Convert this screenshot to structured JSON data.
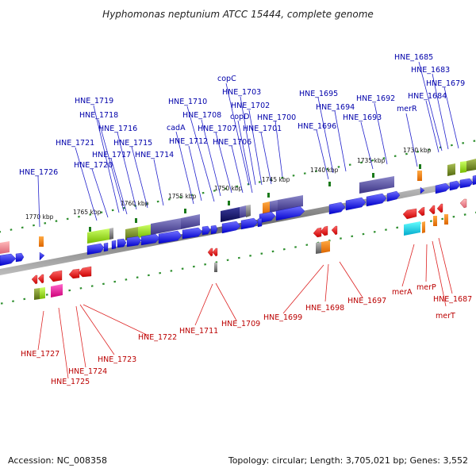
{
  "title": "Hyphomonas neptunium ATCC 15444, complete genome",
  "footer": {
    "accession": "Accession: NC_008358",
    "summary": "Topology: circular; Length: 3,705,021 bp; Genes: 3,552"
  },
  "scale_labels": [
    "1730 kbp",
    "1735 kbp",
    "1740 kbp",
    "1745 kbp",
    "1750 kbp",
    "1755 kbp",
    "1760 kbp",
    "1765 kbp",
    "1770 kbp"
  ],
  "forward_gene_labels": [
    "HNE_1685",
    "HNE_1683",
    "HNE_1679",
    "HNE_1684",
    "merR",
    "HNE_1692",
    "HNE_1695",
    "HNE_1694",
    "HNE_1693",
    "HNE_1696",
    "copC",
    "HNE_1703",
    "HNE_1702",
    "copD",
    "HNE_1700",
    "HNE_1701",
    "HNE_1710",
    "HNE_1708",
    "cadA",
    "HNE_1707",
    "HNE_1712",
    "HNE_1706",
    "HNE_1719",
    "HNE_1718",
    "HNE_1716",
    "HNE_1721",
    "HNE_1715",
    "HNE_1717",
    "HNE_1714",
    "HNE_1720",
    "HNE_1726"
  ],
  "reverse_gene_labels": [
    "merA",
    "merP",
    "HNE_1687",
    "merT",
    "HNE_1697",
    "HNE_1698",
    "HNE_1699",
    "HNE_1709",
    "HNE_1711",
    "HNE_1722",
    "HNE_1723",
    "HNE_1724",
    "HNE_1725",
    "HNE_1727"
  ],
  "colors": {
    "forward_label": "#0000aa",
    "reverse_label": "#bb0000",
    "gene_arrow": "#1a1aee",
    "rev_arrow": "#ee1111",
    "backbone": "#888888"
  }
}
